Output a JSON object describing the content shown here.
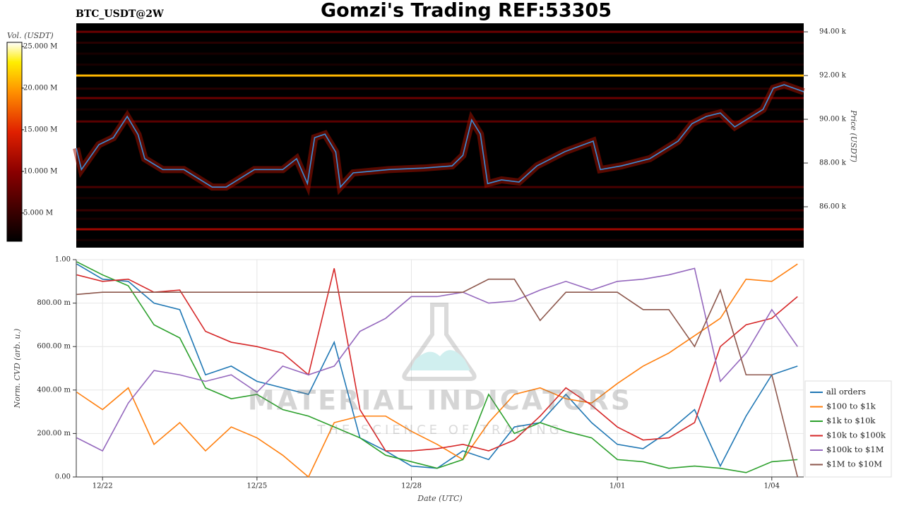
{
  "title": "Gomzi's Trading REF:53305",
  "watermark": {
    "brand": "MATERIAL INDICATORS",
    "tagline": "THE SCIENCE OF TRADING"
  },
  "chart_data": [
    {
      "type": "heatmap",
      "title": "BTC_USDT@2W",
      "ylabel": "Price (USDT)",
      "xlim": [
        -0.51,
        13.62
      ],
      "ylim": [
        84130,
        94390
      ],
      "yticks": [
        {
          "value": 86000,
          "label": "86.00 k"
        },
        {
          "value": 88000,
          "label": "88.00 k"
        },
        {
          "value": 90000,
          "label": "90.00 k"
        },
        {
          "value": 92000,
          "label": "92.00 k"
        },
        {
          "value": 94000,
          "label": "94.00 k"
        }
      ],
      "levels": [
        94000,
        93500,
        93000,
        92500,
        92000,
        91400,
        90970,
        90450,
        89900,
        86900,
        86400,
        85840,
        85450,
        84970,
        84480
      ],
      "volumes": [
        8000000,
        4000000,
        3000000,
        3000000,
        21000000,
        4000000,
        8000000,
        3000000,
        7000000,
        6000000,
        3000000,
        5000000,
        3000000,
        11000000,
        3000000
      ],
      "colorbar": {
        "label": "Vol. (USDT)",
        "lim": [
          1600000,
          25500000
        ],
        "ticks": [
          {
            "value": 5000000,
            "label": "5.000 M"
          },
          {
            "value": 10000000,
            "label": "10.000 M"
          },
          {
            "value": 15000000,
            "label": "15.000 M"
          },
          {
            "value": 20000000,
            "label": "20.000 M"
          },
          {
            "value": 25000000,
            "label": "25.000 M"
          }
        ]
      },
      "price": {
        "color": "#3a8fd8",
        "x": [
          -0.51,
          -0.41,
          -0.07,
          0.21,
          0.48,
          0.69,
          0.82,
          1.17,
          1.58,
          2.13,
          2.4,
          2.95,
          3.5,
          3.77,
          3.98,
          4.12,
          4.32,
          4.53,
          4.62,
          4.87,
          5.56,
          6.24,
          6.79,
          7.0,
          7.17,
          7.34,
          7.48,
          7.75,
          8.09,
          8.44,
          8.98,
          9.53,
          9.67,
          10.08,
          10.63,
          11.18,
          11.45,
          11.73,
          12.0,
          12.28,
          12.83,
          13.03,
          13.24,
          13.62
        ],
        "values": [
          88680,
          87700,
          88840,
          89160,
          90130,
          89300,
          88200,
          87700,
          87700,
          86900,
          86900,
          87700,
          87700,
          88200,
          87060,
          89160,
          89320,
          88500,
          86900,
          87550,
          87700,
          87770,
          87870,
          88350,
          89970,
          89320,
          87060,
          87230,
          87130,
          87870,
          88520,
          89000,
          87700,
          87870,
          88200,
          89000,
          89800,
          90130,
          90290,
          89650,
          90450,
          91420,
          91580,
          91260
        ]
      }
    },
    {
      "type": "line",
      "xlabel": "Date (UTC)",
      "ylabel": "Norm. CVD (arb. u.)",
      "xlim": [
        -0.51,
        13.62
      ],
      "xticks": [
        {
          "value": 0,
          "label": "12/22"
        },
        {
          "value": 3,
          "label": "12/25"
        },
        {
          "value": 6,
          "label": "12/28"
        },
        {
          "value": 10,
          "label": "1/01"
        },
        {
          "value": 13,
          "label": "1/04"
        }
      ],
      "ylim": [
        0,
        1
      ],
      "yticks": [
        {
          "value": 0,
          "label": "0.00"
        },
        {
          "value": 0.2,
          "label": "200.00 m"
        },
        {
          "value": 0.4,
          "label": "400.00 m"
        },
        {
          "value": 0.6,
          "label": "600.00 m"
        },
        {
          "value": 0.8,
          "label": "800.00 m"
        },
        {
          "value": 1,
          "label": "1.00"
        }
      ],
      "grid": true,
      "legend": "right",
      "x": [
        -0.5,
        0,
        0.5,
        1,
        1.5,
        2,
        2.5,
        3,
        3.5,
        4,
        4.5,
        5,
        5.5,
        6,
        6.5,
        7,
        7.5,
        8,
        8.5,
        9,
        9.5,
        10,
        10.5,
        11,
        11.5,
        12,
        12.5,
        13,
        13.5
      ],
      "series": [
        {
          "name": "all orders",
          "color": "#1f77b4",
          "values": [
            0.98,
            0.91,
            0.9,
            0.8,
            0.77,
            0.47,
            0.51,
            0.44,
            0.41,
            0.38,
            0.62,
            0.18,
            0.12,
            0.05,
            0.04,
            0.12,
            0.08,
            0.23,
            0.25,
            0.38,
            0.25,
            0.15,
            0.13,
            0.21,
            0.31,
            0.05,
            0.28,
            0.47,
            0.51
          ]
        },
        {
          "name": "$100 to $1k",
          "color": "#ff7f0e",
          "values": [
            0.39,
            0.31,
            0.41,
            0.15,
            0.25,
            0.12,
            0.23,
            0.18,
            0.1,
            0.0,
            0.25,
            0.28,
            0.28,
            0.21,
            0.15,
            0.08,
            0.25,
            0.38,
            0.41,
            0.36,
            0.34,
            0.43,
            0.51,
            0.57,
            0.65,
            0.73,
            0.91,
            0.9,
            0.98
          ]
        },
        {
          "name": "$1k to $10k",
          "color": "#2ca02c",
          "values": [
            0.99,
            0.93,
            0.88,
            0.7,
            0.64,
            0.41,
            0.36,
            0.38,
            0.31,
            0.28,
            0.23,
            0.18,
            0.1,
            0.07,
            0.04,
            0.08,
            0.38,
            0.2,
            0.25,
            0.21,
            0.18,
            0.08,
            0.07,
            0.04,
            0.05,
            0.04,
            0.02,
            0.07,
            0.08
          ]
        },
        {
          "name": "$10k to $100k",
          "color": "#d62728",
          "values": [
            0.93,
            0.9,
            0.91,
            0.85,
            0.86,
            0.67,
            0.62,
            0.6,
            0.57,
            0.47,
            0.96,
            0.31,
            0.12,
            0.12,
            0.13,
            0.15,
            0.12,
            0.17,
            0.28,
            0.41,
            0.33,
            0.23,
            0.17,
            0.18,
            0.25,
            0.6,
            0.7,
            0.73,
            0.83
          ]
        },
        {
          "name": "$100k to $1M",
          "color": "#9467bd",
          "values": [
            0.18,
            0.12,
            0.34,
            0.49,
            0.47,
            0.44,
            0.47,
            0.39,
            0.51,
            0.47,
            0.51,
            0.67,
            0.73,
            0.83,
            0.83,
            0.85,
            0.8,
            0.81,
            0.86,
            0.9,
            0.86,
            0.9,
            0.91,
            0.93,
            0.96,
            0.44,
            0.57,
            0.77,
            0.6
          ]
        },
        {
          "name": "$1M to $10M",
          "color": "#8c564b",
          "values": [
            0.84,
            0.85,
            0.85,
            0.85,
            0.85,
            0.85,
            0.85,
            0.85,
            0.85,
            0.85,
            0.85,
            0.85,
            0.85,
            0.85,
            0.85,
            0.85,
            0.91,
            0.91,
            0.72,
            0.85,
            0.85,
            0.85,
            0.77,
            0.77,
            0.6,
            0.86,
            0.47,
            0.47,
            0.0
          ]
        }
      ]
    }
  ]
}
